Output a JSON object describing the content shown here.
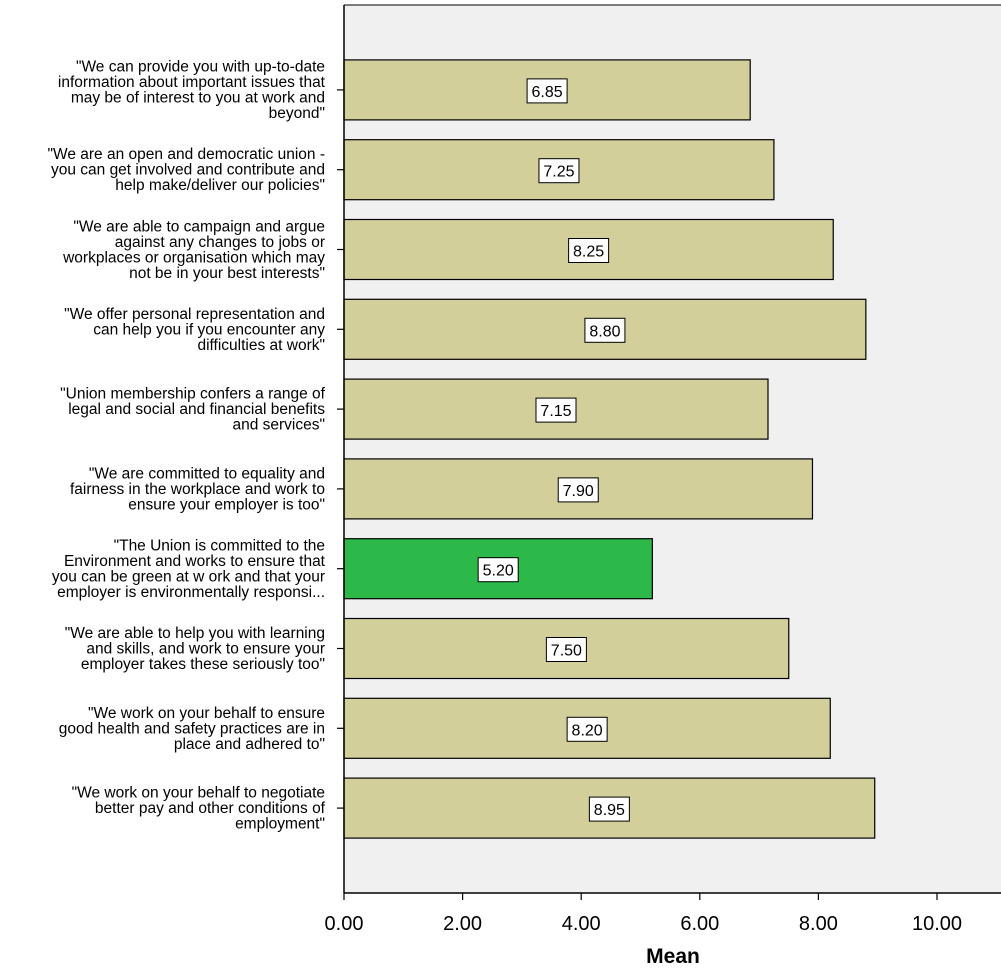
{
  "chart_data": {
    "type": "bar",
    "orientation": "horizontal",
    "title": "",
    "xlabel": "Mean",
    "ylabel": "",
    "xlim": [
      0,
      11
    ],
    "x_ticks": [
      "0.00",
      "2.00",
      "4.00",
      "6.00",
      "8.00",
      "10.00"
    ],
    "x_tick_values": [
      0,
      2,
      4,
      6,
      8,
      10
    ],
    "grid": false,
    "legend": "none",
    "bar_color": "#d3cf9b",
    "highlight_color": "#2db84a",
    "background_color": "#f0f0f0",
    "categories": [
      [
        "\"We can provide you with up-to-date",
        "information about important issues that",
        "may be of interest to you at work and",
        "beyond\""
      ],
      [
        "\"We are an open and democratic union -",
        "you can get involved and contribute and",
        "help make/deliver our policies\""
      ],
      [
        "\"We are able to campaign and argue",
        "against any changes to jobs or",
        "workplaces or organisation which may",
        "not be in your best interests\""
      ],
      [
        "\"We offer personal representation and",
        "can help you if you encounter any",
        "difficulties at work\""
      ],
      [
        "\"Union membership confers a range of",
        "legal and social and financial benefits",
        "and services\""
      ],
      [
        "\"We are committed to equality and",
        "fairness in the workplace and work to",
        "ensure your employer is too\""
      ],
      [
        "\"The Union is committed to the",
        "Environment and works to ensure that",
        "you can be green at w ork and that your",
        "employer is environmentally responsi..."
      ],
      [
        "\"We are able to help you with learning",
        "and skills, and work to ensure your",
        "employer takes these seriously too\""
      ],
      [
        "\"We work on your behalf to ensure",
        "good health and safety practices are in",
        "place and adhered to\""
      ],
      [
        "\"We work on your behalf to negotiate",
        "better pay and other conditions of",
        "employment\""
      ]
    ],
    "values": [
      6.85,
      7.25,
      8.25,
      8.8,
      7.15,
      7.9,
      5.2,
      7.5,
      8.2,
      8.95
    ],
    "value_labels": [
      "6.85",
      "7.25",
      "8.25",
      "8.80",
      "7.15",
      "7.90",
      "5.20",
      "7.50",
      "8.20",
      "8.95"
    ],
    "highlight_index": 6
  }
}
